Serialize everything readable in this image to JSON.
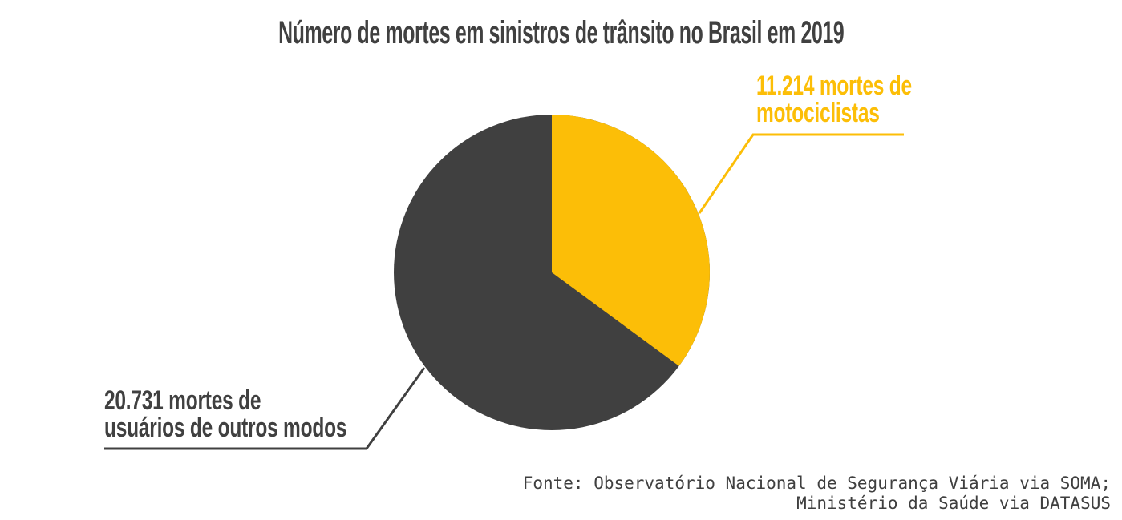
{
  "title": "Número de mortes em sinistros de trânsito no Brasil em 2019",
  "chart_data": {
    "type": "pie",
    "title": "Número de mortes em sinistros de trânsito no Brasil em 2019",
    "slices": [
      {
        "name": "motociclistas",
        "label": "11.214 mortes de motociclistas",
        "value": 11214,
        "color": "#fcbe07"
      },
      {
        "name": "outros-modos",
        "label": "20.731 mortes de usuários de outros modos",
        "value": 20731,
        "color": "#404040"
      }
    ],
    "total": 31945,
    "start_angle_deg": 0,
    "direction": "clockwise",
    "legend_position": "callout-labels",
    "source": "Fonte: Observatório Nacional de Segurança Viária via SOMA; Ministério da Saúde via DATASUS"
  },
  "labels": {
    "moto": {
      "line1": "11.214 mortes de",
      "line2": "motociclistas"
    },
    "others": {
      "line1": "20.731 mortes de",
      "line2": "usuários de outros modos"
    }
  },
  "source": {
    "line1": "Fonte: Observatório Nacional de Segurança Viária via SOMA;",
    "line2": "Ministério da Saúde via DATASUS"
  },
  "colors": {
    "accent_yellow": "#fcbe07",
    "dark_gray": "#404040",
    "background": "#ffffff"
  }
}
